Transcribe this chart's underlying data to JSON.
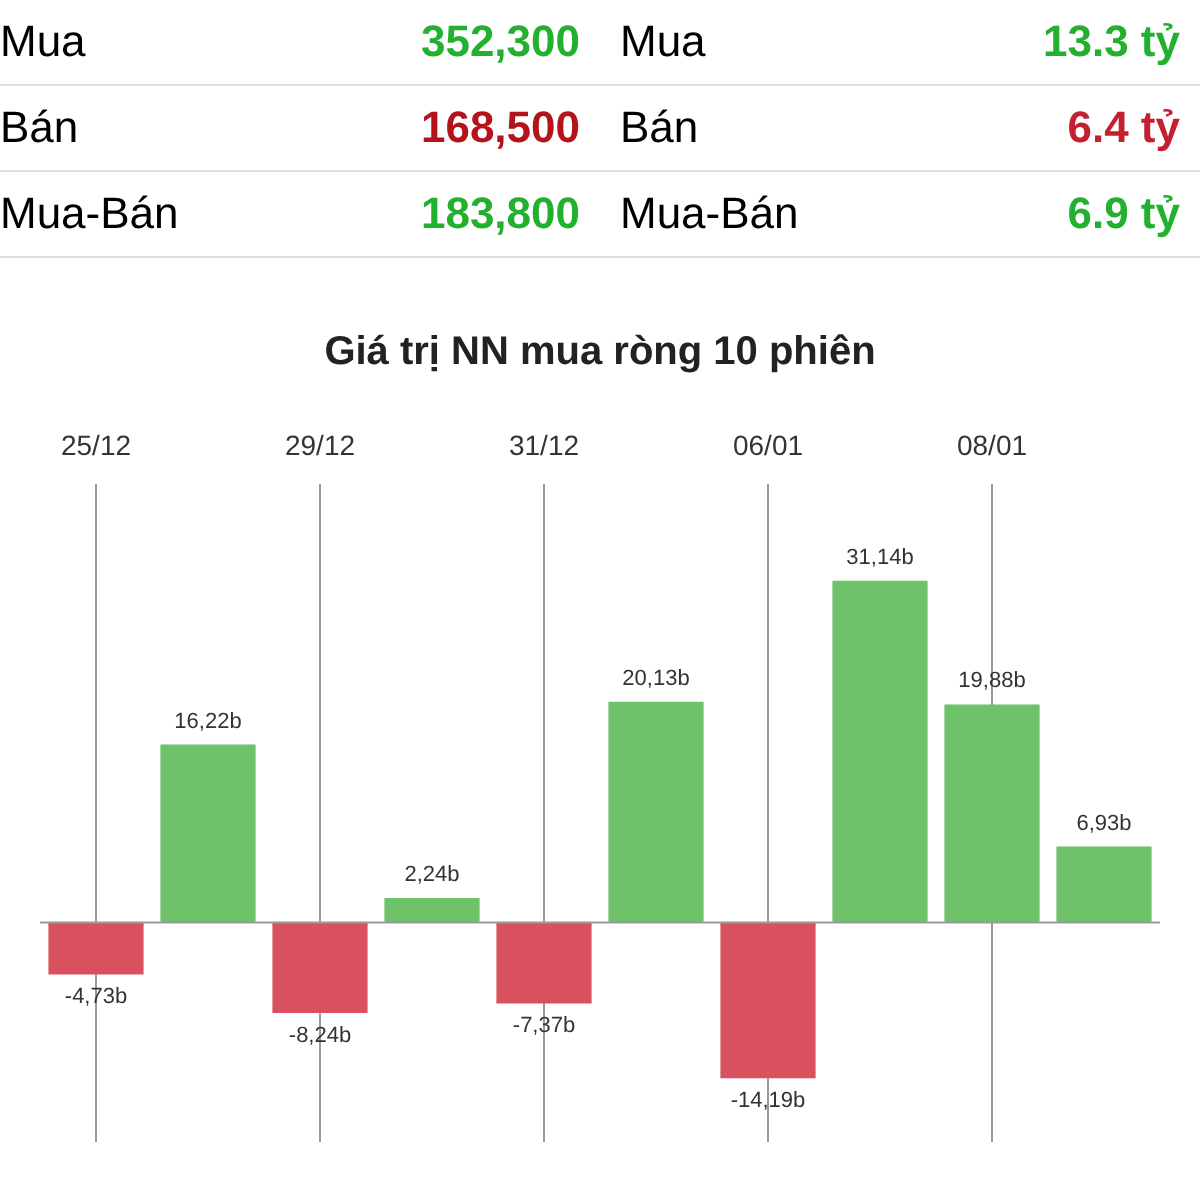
{
  "chart_data": [
    {
      "type": "other",
      "annotations": [
        "Mua",
        "352,300",
        "Mua",
        "13.3 tỷ",
        "Bán",
        "168,500",
        "Bán",
        "6.4 tỷ",
        "Mua-Bán",
        "183,800",
        "Mua-Bán",
        "6.9 tỷ"
      ],
      "colors": [
        "#000000",
        "#22b02e",
        "#000000",
        "#22b02e",
        "#000000",
        "#b3131b",
        "#000000",
        "#c42030",
        "#000000",
        "#22b02e",
        "#000000",
        "#22b02e"
      ]
    },
    {
      "type": "bar",
      "title": "Giá trị NN mua ròng 10 phiên",
      "categories": [
        "25/12",
        null,
        "29/12",
        null,
        "31/12",
        null,
        "06/01",
        null,
        "08/01",
        null
      ],
      "values": [
        -4.73,
        16.22,
        -8.24,
        2.24,
        -7.37,
        20.13,
        -14.19,
        31.14,
        19.88,
        6.93
      ],
      "colors": [
        "#d9505e",
        "#6dc26a",
        "#d9505e",
        "#6dc26a",
        "#d9505e",
        "#6dc26a",
        "#d9505e",
        "#6dc26a",
        "#6dc26a",
        "#6dc26a"
      ],
      "value_labels": [
        "-4,73b",
        "16,22b",
        "-8,24b",
        "2,24b",
        "-7,37b",
        "20,13b",
        "-14,19b",
        "31,14b",
        "19,88b",
        "6,93b"
      ],
      "grid": "x",
      "legend": false
    }
  ]
}
